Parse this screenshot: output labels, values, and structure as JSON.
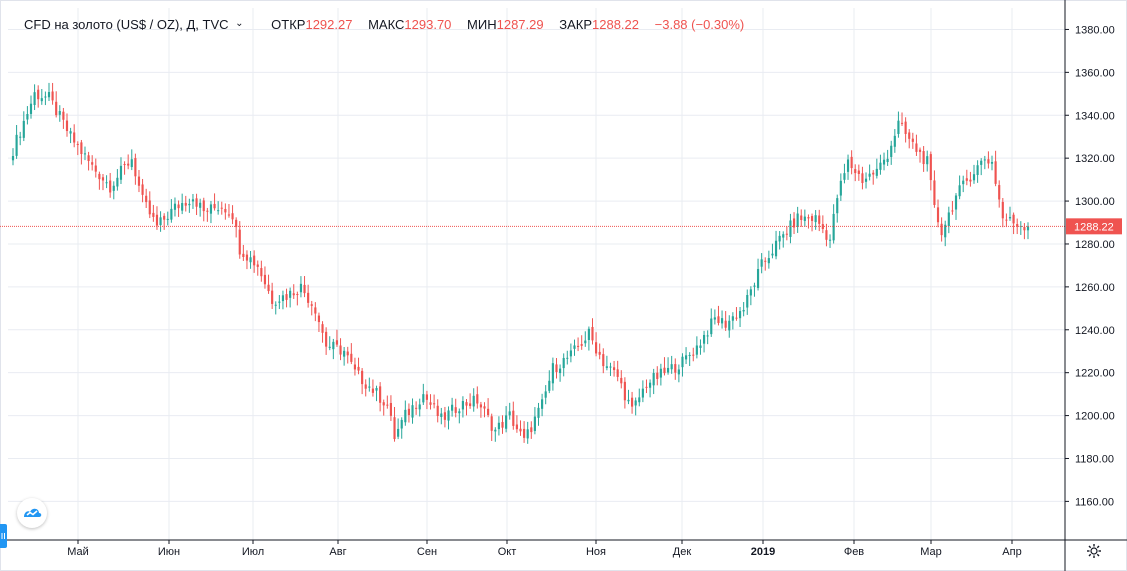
{
  "header": {
    "symbol": "CFD на золото (US$ / OZ), Д, TVC",
    "dropdown_icon": "chevron-down-icon",
    "open_label": "ОТКР",
    "open_value": "1292.27",
    "high_label": "МАКС",
    "high_value": "1293.70",
    "low_label": "МИН",
    "low_value": "1287.29",
    "close_label": "ЗАКР",
    "close_value": "1288.22",
    "change": "−3.88 (−0.30%)"
  },
  "colors": {
    "up": "#26a69a",
    "down": "#ef5350",
    "grid": "#e9ecf2",
    "price_line": "#ef5350",
    "accent": "#2196f3"
  },
  "icons": {
    "logo": "tradingview-logo-icon",
    "settings": "gear-icon",
    "scroll_handle": "drag-handle-icon"
  },
  "chart_data": {
    "type": "candlestick",
    "ylim": [
      1142,
      1390
    ],
    "y_ticks": [
      1160,
      1180,
      1200,
      1220,
      1240,
      1260,
      1280,
      1300,
      1320,
      1340,
      1360,
      1380
    ],
    "y_tick_labels": [
      "1160.00",
      "1180.00",
      "1200.00",
      "1220.00",
      "1240.00",
      "1260.00",
      "1280.00",
      "1300.00",
      "1320.00",
      "1340.00",
      "1360.00",
      "1380.00"
    ],
    "x_labels": [
      "Май",
      "Июн",
      "Июл",
      "Авг",
      "Сен",
      "Окт",
      "Ноя",
      "Дек",
      "2019",
      "Фев",
      "Мар",
      "Апр"
    ],
    "current_price_label": "1288.22",
    "close_path": [
      [
        0,
        1324
      ],
      [
        6,
        1350
      ],
      [
        10,
        1348
      ],
      [
        16,
        1330
      ],
      [
        22,
        1316
      ],
      [
        27,
        1307
      ],
      [
        33,
        1320
      ],
      [
        36,
        1300
      ],
      [
        40,
        1288
      ],
      [
        45,
        1297
      ],
      [
        50,
        1302
      ],
      [
        53,
        1295
      ],
      [
        58,
        1298
      ],
      [
        61,
        1294
      ],
      [
        63,
        1278
      ],
      [
        68,
        1270
      ],
      [
        72,
        1254
      ],
      [
        76,
        1256
      ],
      [
        80,
        1260
      ],
      [
        84,
        1250
      ],
      [
        87,
        1233
      ],
      [
        92,
        1230
      ],
      [
        95,
        1220
      ],
      [
        100,
        1212
      ],
      [
        104,
        1205
      ],
      [
        106,
        1190
      ],
      [
        109,
        1200
      ],
      [
        114,
        1210
      ],
      [
        119,
        1198
      ],
      [
        124,
        1205
      ],
      [
        129,
        1207
      ],
      [
        134,
        1193
      ],
      [
        138,
        1200
      ],
      [
        142,
        1188
      ],
      [
        147,
        1205
      ],
      [
        150,
        1222
      ],
      [
        155,
        1228
      ],
      [
        160,
        1238
      ],
      [
        164,
        1225
      ],
      [
        168,
        1218
      ],
      [
        172,
        1202
      ],
      [
        176,
        1215
      ],
      [
        181,
        1220
      ],
      [
        186,
        1225
      ],
      [
        190,
        1232
      ],
      [
        195,
        1245
      ],
      [
        198,
        1243
      ],
      [
        203,
        1250
      ],
      [
        208,
        1270
      ],
      [
        213,
        1282
      ],
      [
        218,
        1292
      ],
      [
        223,
        1292
      ],
      [
        227,
        1282
      ],
      [
        229,
        1302
      ],
      [
        232,
        1318
      ],
      [
        236,
        1310
      ],
      [
        240,
        1314
      ],
      [
        243,
        1322
      ],
      [
        246,
        1336
      ],
      [
        250,
        1326
      ],
      [
        254,
        1318
      ],
      [
        256,
        1296
      ],
      [
        258,
        1286
      ],
      [
        262,
        1302
      ],
      [
        266,
        1312
      ],
      [
        270,
        1320
      ],
      [
        272,
        1318
      ],
      [
        275,
        1292
      ],
      [
        278,
        1290
      ],
      [
        282,
        1288.22
      ]
    ]
  }
}
